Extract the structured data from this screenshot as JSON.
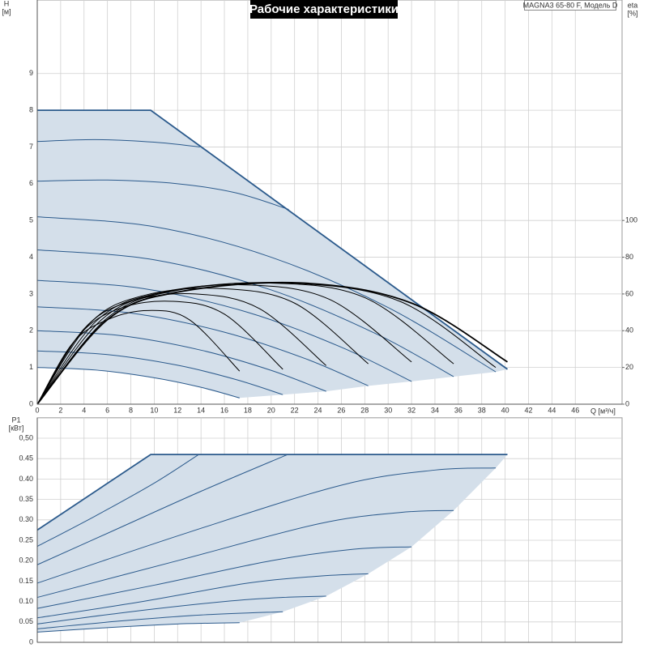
{
  "chart_data": [
    {
      "type": "line",
      "title": "Рабочие характеристики",
      "annotation": "MAGNA3 65-80 F, Модель D",
      "ylabel": "H",
      "yunit": "[м]",
      "y2label": "eta",
      "y2unit": "[%]",
      "xlabel": "Q [м³/ч]",
      "xlim": [
        0,
        50
      ],
      "xticks": [
        0,
        2,
        4,
        6,
        8,
        10,
        12,
        14,
        16,
        18,
        20,
        22,
        24,
        26,
        28,
        30,
        32,
        34,
        36,
        38,
        40,
        42,
        44,
        46
      ],
      "show_xtick_labels": true,
      "ylim": [
        0,
        11
      ],
      "yticks": [
        0,
        1,
        2,
        3,
        4,
        5,
        6,
        7,
        8,
        9
      ],
      "y2lim": [
        0,
        220
      ],
      "y2ticks": [
        0,
        20,
        40,
        60,
        80,
        100
      ],
      "grid": true,
      "series": [
        {
          "fill": "#d4dfea",
          "smooth": false,
          "x": [
            0,
            9.7,
            40.2,
            39.2,
            35.6,
            32,
            28.3,
            24.7,
            21,
            17.3,
            12,
            6,
            0
          ],
          "values": [
            8,
            8,
            0.95,
            0.88,
            0.75,
            0.62,
            0.5,
            0.35,
            0.26,
            0.17,
            0.61,
            0.9,
            1.0
          ]
        },
        {
          "color": "#2b5a8c",
          "width": 1,
          "x": [
            0,
            5,
            10,
            14,
            17.3
          ],
          "values": [
            1.0,
            0.93,
            0.72,
            0.46,
            0.17
          ]
        },
        {
          "color": "#2b5a8c",
          "width": 1,
          "x": [
            0,
            6,
            12,
            17,
            21
          ],
          "values": [
            1.45,
            1.35,
            1.06,
            0.67,
            0.26
          ]
        },
        {
          "color": "#2b5a8c",
          "width": 1,
          "x": [
            0,
            7,
            14,
            20,
            24.7
          ],
          "values": [
            2.0,
            1.87,
            1.47,
            0.92,
            0.35
          ]
        },
        {
          "color": "#2b5a8c",
          "width": 1,
          "x": [
            0,
            8,
            16,
            23,
            28.3
          ],
          "values": [
            2.65,
            2.48,
            1.96,
            1.23,
            0.5
          ]
        },
        {
          "color": "#2b5a8c",
          "width": 1,
          "x": [
            0,
            9,
            18,
            26,
            32
          ],
          "values": [
            3.37,
            3.15,
            2.5,
            1.55,
            0.62
          ]
        },
        {
          "color": "#2b5a8c",
          "width": 1,
          "x": [
            0,
            10,
            20,
            29,
            35.6
          ],
          "values": [
            4.2,
            3.93,
            3.11,
            1.91,
            0.75
          ]
        },
        {
          "color": "#2b5a8c",
          "width": 1,
          "x": [
            0,
            10,
            20,
            30,
            39.2
          ],
          "values": [
            5.1,
            4.83,
            4.0,
            2.63,
            0.88
          ]
        },
        {
          "color": "#2b5a8c",
          "width": 1,
          "x": [
            0,
            6,
            12,
            17,
            21.5
          ],
          "values": [
            6.07,
            6.1,
            6.0,
            5.75,
            5.3
          ]
        },
        {
          "color": "#2b5a8c",
          "width": 1,
          "x": [
            0,
            5,
            10,
            13.9
          ],
          "values": [
            7.15,
            7.2,
            7.13,
            7.0
          ]
        },
        {
          "color": "#2b5a8c",
          "width": 1.8,
          "smooth": false,
          "x": [
            0,
            9.7,
            40.2
          ],
          "values": [
            8,
            8,
            0.95
          ]
        },
        {
          "color": "#000000",
          "width": 1,
          "axis": "y2",
          "x": [
            0,
            3,
            6,
            9.5,
            13,
            17.3
          ],
          "values": [
            0,
            33,
            46,
            51,
            46,
            18
          ]
        },
        {
          "color": "#000000",
          "width": 1,
          "axis": "y2",
          "x": [
            0,
            3.5,
            7,
            11.5,
            16,
            21
          ],
          "values": [
            0,
            37,
            52,
            56,
            49,
            19
          ]
        },
        {
          "color": "#000000",
          "width": 1,
          "axis": "y2",
          "x": [
            0,
            4,
            8,
            13.5,
            19,
            24.7
          ],
          "values": [
            0,
            41,
            56,
            60,
            52,
            21
          ]
        },
        {
          "color": "#000000",
          "width": 1,
          "axis": "y2",
          "x": [
            0,
            4.5,
            9,
            15.5,
            22,
            28.3
          ],
          "values": [
            0,
            44,
            59,
            63,
            55,
            22
          ]
        },
        {
          "color": "#000000",
          "width": 1,
          "axis": "y2",
          "x": [
            0,
            5,
            10,
            17.5,
            25,
            32
          ],
          "values": [
            0,
            45,
            60,
            65,
            57,
            23
          ]
        },
        {
          "color": "#000000",
          "width": 1,
          "axis": "y2",
          "x": [
            0,
            5.5,
            11,
            19.5,
            28,
            35.6
          ],
          "values": [
            0,
            46,
            61,
            66,
            58,
            22
          ]
        },
        {
          "color": "#000000",
          "width": 1,
          "axis": "y2",
          "x": [
            0,
            6,
            12,
            21.5,
            31,
            39.2
          ],
          "values": [
            0,
            47,
            62,
            66,
            56,
            20
          ]
        },
        {
          "color": "#000000",
          "width": 1.8,
          "axis": "y2",
          "x": [
            0,
            6,
            12,
            22.5,
            32,
            40.2
          ],
          "values": [
            0,
            46,
            61,
            66,
            55,
            23
          ]
        }
      ]
    },
    {
      "type": "line",
      "ylabel": "P1",
      "yunit": "[кВт]",
      "xlim": [
        0,
        50
      ],
      "xticks": [
        0,
        2,
        4,
        6,
        8,
        10,
        12,
        14,
        16,
        18,
        20,
        22,
        24,
        26,
        28,
        30,
        32,
        34,
        36,
        38,
        40,
        42,
        44,
        46
      ],
      "show_xtick_labels": false,
      "ylim": [
        0,
        0.55
      ],
      "yticks": [
        0,
        0.05,
        {
          "value": 0.1,
          "label": "0.10"
        },
        0.15,
        {
          "value": 0.2,
          "label": "0.20"
        },
        0.25,
        {
          "value": 0.3,
          "label": "0.30"
        },
        0.35,
        {
          "value": 0.4,
          "label": "0.40"
        },
        0.45,
        {
          "value": 0.5,
          "label": "0,50"
        }
      ],
      "grid": true,
      "series": [
        {
          "fill": "#d4dfea",
          "smooth": false,
          "x": [
            0,
            9.7,
            40.2,
            39.2,
            35.6,
            32,
            28.3,
            24.7,
            21,
            17.3,
            12,
            6,
            0
          ],
          "values": [
            0.275,
            0.46,
            0.46,
            0.427,
            0.323,
            0.234,
            0.168,
            0.113,
            0.075,
            0.048,
            0.045,
            0.036,
            0.025
          ]
        },
        {
          "color": "#2b5a8c",
          "width": 1,
          "x": [
            0,
            6,
            12,
            17.3
          ],
          "values": [
            0.025,
            0.036,
            0.045,
            0.048
          ]
        },
        {
          "color": "#2b5a8c",
          "width": 1,
          "x": [
            0,
            7,
            14,
            21
          ],
          "values": [
            0.033,
            0.052,
            0.067,
            0.075
          ]
        },
        {
          "color": "#2b5a8c",
          "width": 1,
          "x": [
            0,
            8,
            16,
            21,
            24.7
          ],
          "values": [
            0.045,
            0.075,
            0.1,
            0.11,
            0.113
          ]
        },
        {
          "color": "#2b5a8c",
          "width": 1,
          "x": [
            0,
            9,
            18,
            24,
            28.3
          ],
          "values": [
            0.06,
            0.1,
            0.145,
            0.162,
            0.168
          ]
        },
        {
          "color": "#2b5a8c",
          "width": 1,
          "x": [
            0,
            10,
            20,
            27,
            32
          ],
          "values": [
            0.083,
            0.14,
            0.2,
            0.228,
            0.234
          ]
        },
        {
          "color": "#2b5a8c",
          "width": 1,
          "x": [
            0,
            12,
            24,
            31,
            35.6
          ],
          "values": [
            0.11,
            0.2,
            0.29,
            0.318,
            0.323
          ]
        },
        {
          "color": "#2b5a8c",
          "width": 1,
          "x": [
            0,
            13,
            26,
            34,
            39.2
          ],
          "values": [
            0.145,
            0.27,
            0.385,
            0.422,
            0.427
          ]
        },
        {
          "color": "#2b5a8c",
          "width": 1,
          "x": [
            0,
            7,
            14,
            21.4
          ],
          "values": [
            0.19,
            0.28,
            0.37,
            0.46
          ]
        },
        {
          "color": "#2b5a8c",
          "width": 1,
          "x": [
            0,
            5,
            10,
            13.8
          ],
          "values": [
            0.235,
            0.31,
            0.39,
            0.46
          ]
        },
        {
          "color": "#2b5a8c",
          "width": 1.8,
          "smooth": false,
          "x": [
            0,
            9.7,
            40.2
          ],
          "values": [
            0.275,
            0.46,
            0.46
          ]
        }
      ]
    }
  ]
}
